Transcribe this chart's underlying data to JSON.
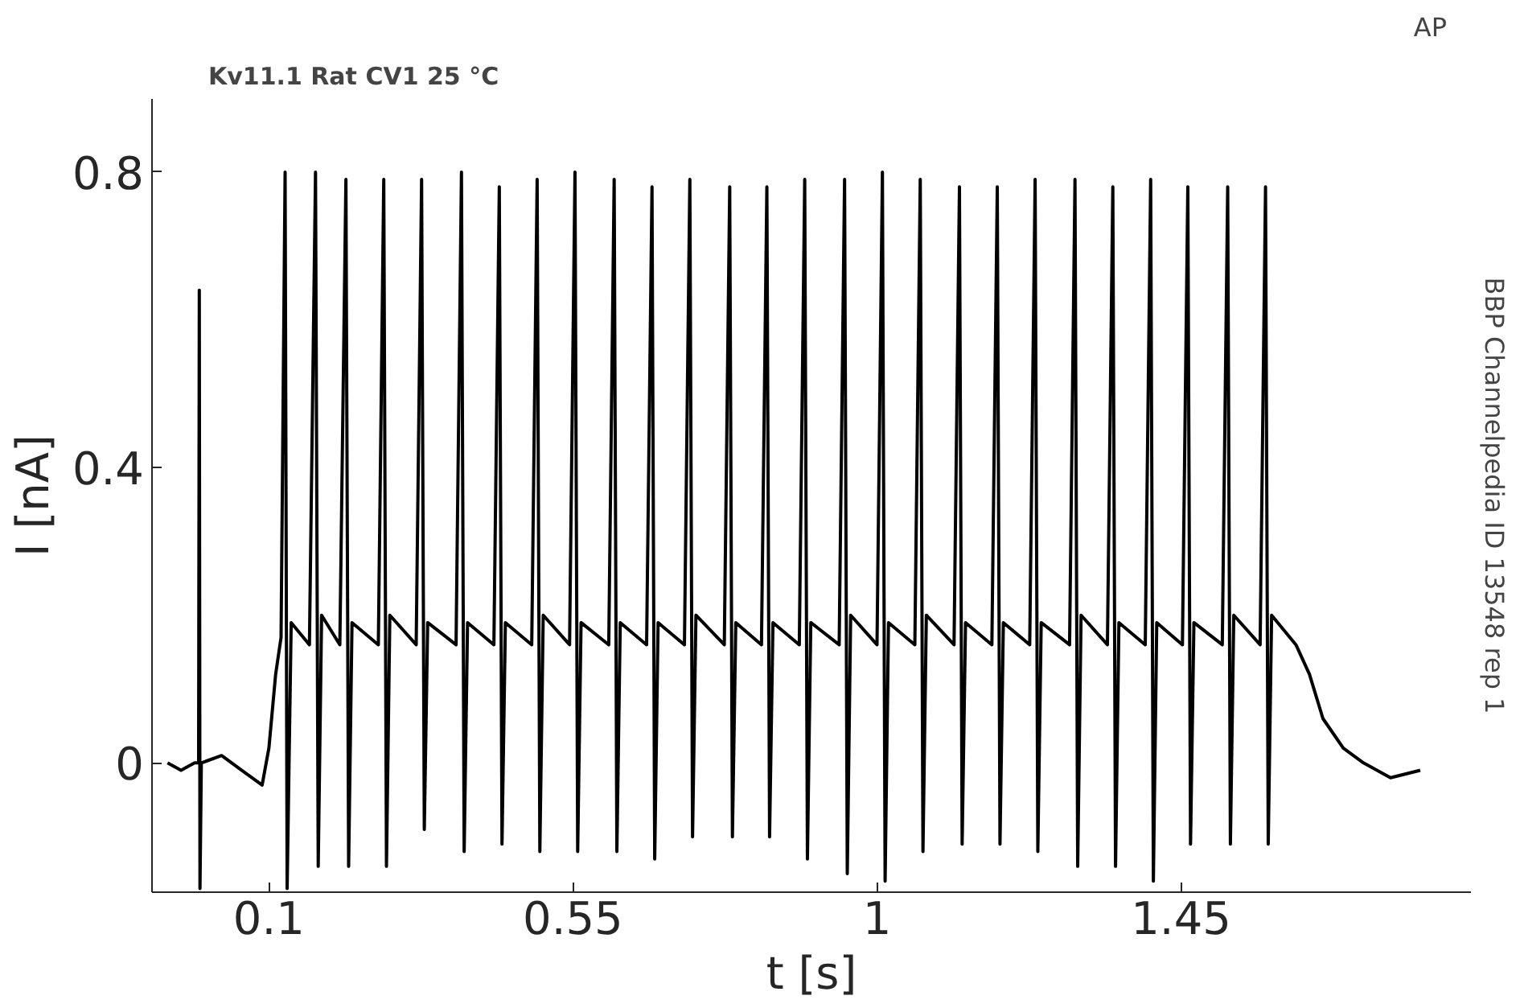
{
  "chart_data": {
    "type": "line",
    "title": "Kv11.1  Rat  CV1  25 °C",
    "xlabel": "t [s]",
    "ylabel": "I [nA]",
    "annotations": [
      "AP",
      "BBP Channelpedia ID 13548 rep 1"
    ],
    "xlim": [
      -0.073,
      1.879
    ],
    "ylim": [
      -0.175,
      0.899
    ],
    "xticks": [
      0.1,
      0.55,
      1,
      1.45
    ],
    "yticks": [
      0,
      0.4,
      0.8
    ],
    "grid": false,
    "series": [
      {
        "color": "#000000",
        "x": [
          -0.05,
          -0.03,
          -0.01,
          -0.004,
          -0.003,
          -0.002,
          0.0,
          0.03,
          0.06,
          0.09,
          0.1,
          0.11,
          0.118,
          0.124,
          0.127,
          0.133,
          0.16,
          0.169,
          0.173,
          0.178,
          0.205,
          0.214,
          0.218,
          0.223,
          0.262,
          0.27,
          0.274,
          0.279,
          0.318,
          0.326,
          0.33,
          0.335,
          0.377,
          0.385,
          0.389,
          0.394,
          0.433,
          0.441,
          0.445,
          0.45,
          0.489,
          0.497,
          0.501,
          0.506,
          0.545,
          0.553,
          0.557,
          0.562,
          0.603,
          0.611,
          0.615,
          0.62,
          0.659,
          0.667,
          0.671,
          0.676,
          0.715,
          0.723,
          0.727,
          0.732,
          0.774,
          0.782,
          0.786,
          0.791,
          0.829,
          0.837,
          0.841,
          0.846,
          0.885,
          0.893,
          0.897,
          0.902,
          0.944,
          0.952,
          0.956,
          0.961,
          1.0,
          1.008,
          1.012,
          1.017,
          1.056,
          1.064,
          1.068,
          1.073,
          1.114,
          1.122,
          1.126,
          1.131,
          1.17,
          1.178,
          1.182,
          1.187,
          1.226,
          1.234,
          1.238,
          1.243,
          1.285,
          1.293,
          1.297,
          1.302,
          1.341,
          1.349,
          1.353,
          1.358,
          1.397,
          1.405,
          1.409,
          1.414,
          1.452,
          1.46,
          1.464,
          1.469,
          1.511,
          1.519,
          1.523,
          1.528,
          1.567,
          1.575,
          1.579,
          1.584,
          1.62,
          1.64,
          1.66,
          1.69,
          1.72,
          1.76,
          1.804
        ],
        "values": [
          0.0,
          -0.01,
          0.0,
          0.0,
          0.64,
          -0.17,
          0.0,
          0.01,
          -0.01,
          -0.03,
          0.02,
          0.12,
          0.17,
          0.8,
          -0.17,
          0.19,
          0.16,
          0.8,
          -0.14,
          0.2,
          0.16,
          0.79,
          -0.14,
          0.19,
          0.16,
          0.79,
          -0.14,
          0.2,
          0.16,
          0.79,
          -0.09,
          0.19,
          0.16,
          0.8,
          -0.12,
          0.19,
          0.16,
          0.78,
          -0.11,
          0.19,
          0.16,
          0.79,
          -0.12,
          0.2,
          0.16,
          0.8,
          -0.12,
          0.19,
          0.16,
          0.79,
          -0.12,
          0.19,
          0.16,
          0.78,
          -0.13,
          0.19,
          0.16,
          0.79,
          -0.1,
          0.2,
          0.16,
          0.78,
          -0.1,
          0.19,
          0.16,
          0.78,
          -0.1,
          0.19,
          0.16,
          0.79,
          -0.13,
          0.19,
          0.16,
          0.79,
          -0.15,
          0.2,
          0.16,
          0.8,
          -0.16,
          0.19,
          0.16,
          0.79,
          -0.12,
          0.2,
          0.16,
          0.78,
          -0.11,
          0.19,
          0.16,
          0.78,
          -0.11,
          0.19,
          0.16,
          0.79,
          -0.12,
          0.19,
          0.16,
          0.79,
          -0.14,
          0.2,
          0.16,
          0.78,
          -0.14,
          0.19,
          0.16,
          0.79,
          -0.16,
          0.19,
          0.16,
          0.78,
          -0.11,
          0.19,
          0.16,
          0.78,
          -0.11,
          0.2,
          0.16,
          0.78,
          -0.11,
          0.2,
          0.16,
          0.12,
          0.06,
          0.02,
          0.0,
          -0.02,
          -0.01
        ]
      }
    ]
  }
}
